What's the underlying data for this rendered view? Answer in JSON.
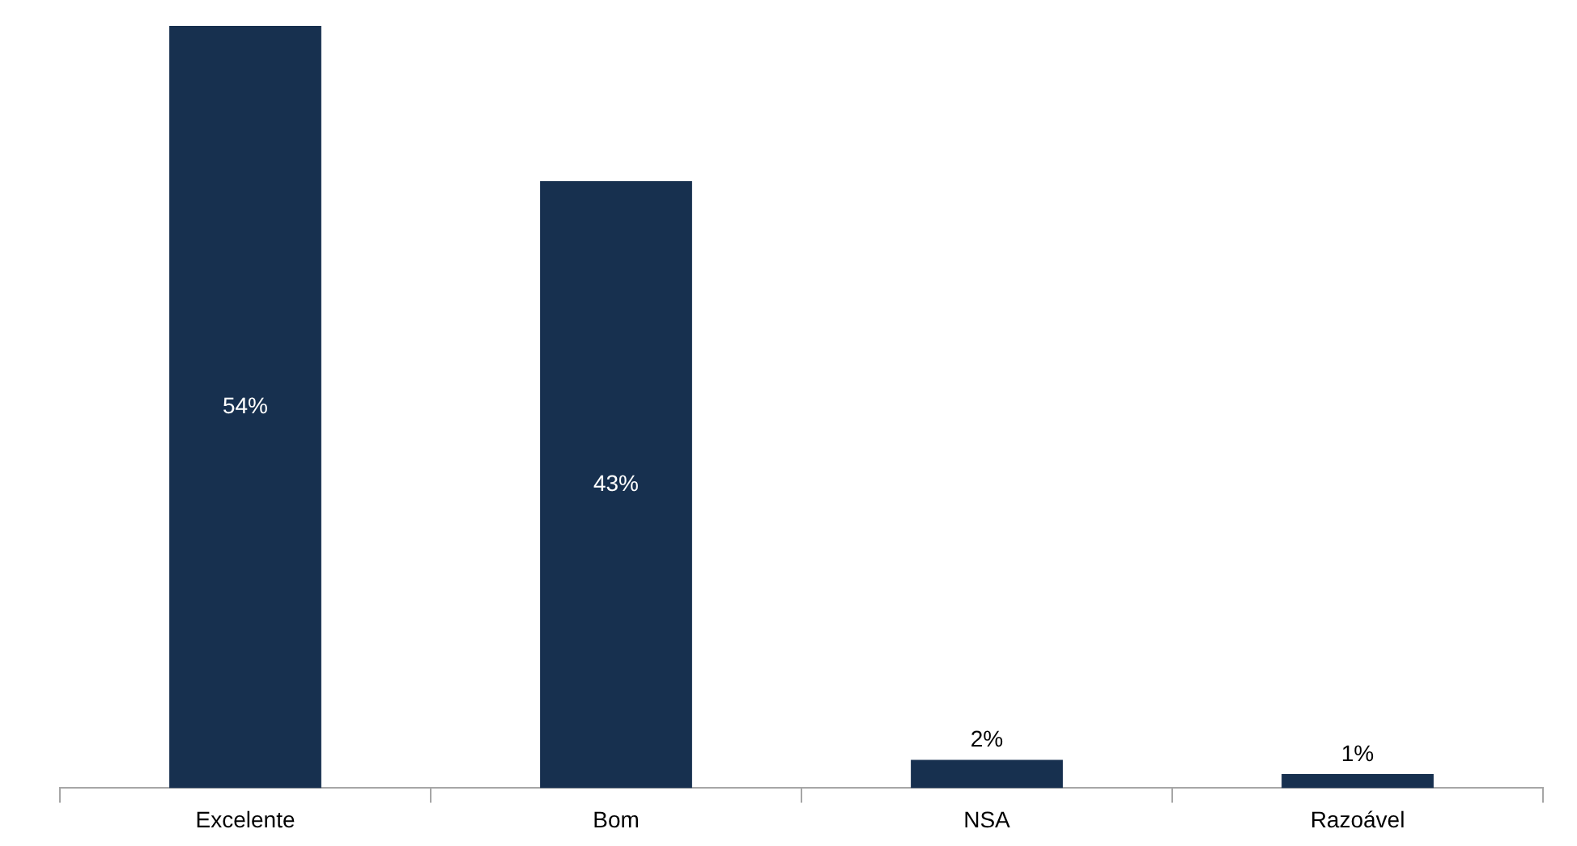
{
  "chart_data": {
    "type": "bar",
    "categories": [
      "Excelente",
      "Bom",
      "NSA",
      "Razoável"
    ],
    "values": [
      54,
      43,
      2,
      1
    ],
    "value_labels": [
      "54%",
      "43%",
      "2%",
      "1%"
    ],
    "color": "#17304f",
    "grid": false,
    "legend": false,
    "tick_labels": "x"
  }
}
